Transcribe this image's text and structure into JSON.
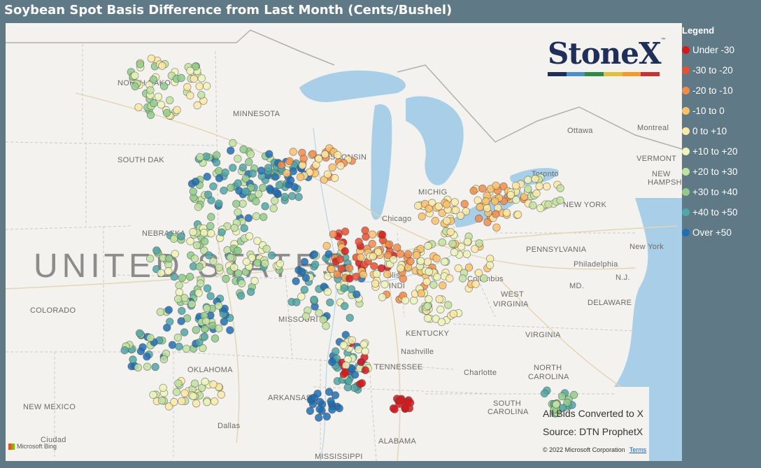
{
  "title": "Soybean Spot Basis Difference from Last Month (Cents/Bushel)",
  "legend": {
    "title": "Legend",
    "items": [
      {
        "label": "Under -30",
        "color": "#d7191c"
      },
      {
        "label": "-30 to -20",
        "color": "#e8502f"
      },
      {
        "label": "-20 to -10",
        "color": "#f28c4a"
      },
      {
        "label": "-10 to 0",
        "color": "#fbc169"
      },
      {
        "label": "0 to +10",
        "color": "#fde9a4"
      },
      {
        "label": "+10 to +20",
        "color": "#eef5b9"
      },
      {
        "label": "+20 to +30",
        "color": "#c2e3a0"
      },
      {
        "label": "+30 to +40",
        "color": "#8fcc8a"
      },
      {
        "label": "+40 to +50",
        "color": "#4fa7a6"
      },
      {
        "label": "Over +50",
        "color": "#1f6fb4"
      }
    ]
  },
  "logo": {
    "text": "StoneX",
    "tm": "™",
    "bar_colors": [
      "#1e2f5a",
      "#4a8fc7",
      "#2f8a4a",
      "#e3c03a",
      "#f39a2a",
      "#c8323b"
    ]
  },
  "notes": {
    "line1": "All Bids Converted to X",
    "line2": "Source: DTN ProphetX"
  },
  "copyright": {
    "text": "© 2022 Microsoft Corporation",
    "terms": "Terms"
  },
  "attribution": "Microsoft Bing",
  "map_labels": [
    {
      "id": "north-dakota",
      "text": "NORTH DAKO"
    },
    {
      "id": "minnesota",
      "text": "MINNESOTA"
    },
    {
      "id": "south-dakota",
      "text": "SOUTH DAK"
    },
    {
      "id": "wisconsin",
      "text": "WISCONSIN"
    },
    {
      "id": "michigan",
      "text": "MICHIG"
    },
    {
      "id": "nebraska",
      "text": "NEBRASKA"
    },
    {
      "id": "colorado",
      "text": "COLORADO"
    },
    {
      "id": "missouri",
      "text": "MISSOURI"
    },
    {
      "id": "kentucky",
      "text": "KENTUCKY"
    },
    {
      "id": "tennessee",
      "text": "TENNESSEE"
    },
    {
      "id": "oklahoma",
      "text": "OKLAHOMA"
    },
    {
      "id": "arkansas",
      "text": "ARKANSAS"
    },
    {
      "id": "new-mexico",
      "text": "NEW MEXICO"
    },
    {
      "id": "alabama",
      "text": "ALABAMA"
    },
    {
      "id": "mississippi",
      "text": "MISSISSIPPI"
    },
    {
      "id": "pennsylvania",
      "text": "PENNSYLVANIA"
    },
    {
      "id": "new-york-state",
      "text": "NEW YORK"
    },
    {
      "id": "west-virginia-1",
      "text": "WEST"
    },
    {
      "id": "west-virginia-2",
      "text": "VIRGINIA"
    },
    {
      "id": "virginia",
      "text": "VIRGINIA"
    },
    {
      "id": "north-carolina-1",
      "text": "NORTH"
    },
    {
      "id": "north-carolina-2",
      "text": "CAROLINA"
    },
    {
      "id": "south-carolina-1",
      "text": "SOUTH"
    },
    {
      "id": "south-carolina-2",
      "text": "CAROLINA"
    },
    {
      "id": "vermont",
      "text": "VERMONT"
    },
    {
      "id": "new-hampshire-1",
      "text": "NEW"
    },
    {
      "id": "new-hampshire-2",
      "text": "HAMPSHIRE"
    },
    {
      "id": "delaware",
      "text": "DELAWARE"
    },
    {
      "id": "maryland",
      "text": "MD."
    },
    {
      "id": "new-jersey",
      "text": "N.J."
    },
    {
      "id": "ottawa",
      "text": "Ottawa"
    },
    {
      "id": "montreal",
      "text": "Montreal"
    },
    {
      "id": "toronto",
      "text": "Toronto"
    },
    {
      "id": "chicago",
      "text": "Chicago"
    },
    {
      "id": "columbus",
      "text": "Columbus"
    },
    {
      "id": "philadelphia",
      "text": "Philadelphia"
    },
    {
      "id": "new-york-city",
      "text": "New York"
    },
    {
      "id": "nashville",
      "text": "Nashville"
    },
    {
      "id": "charlotte",
      "text": "Charlotte"
    },
    {
      "id": "dallas",
      "text": "Dallas"
    },
    {
      "id": "ciudad",
      "text": "Ciudad"
    },
    {
      "id": "indianapolis",
      "text": "olis"
    },
    {
      "id": "indiana",
      "text": "INDI"
    },
    {
      "id": "united-states",
      "text": "UNITED STATES"
    }
  ]
}
